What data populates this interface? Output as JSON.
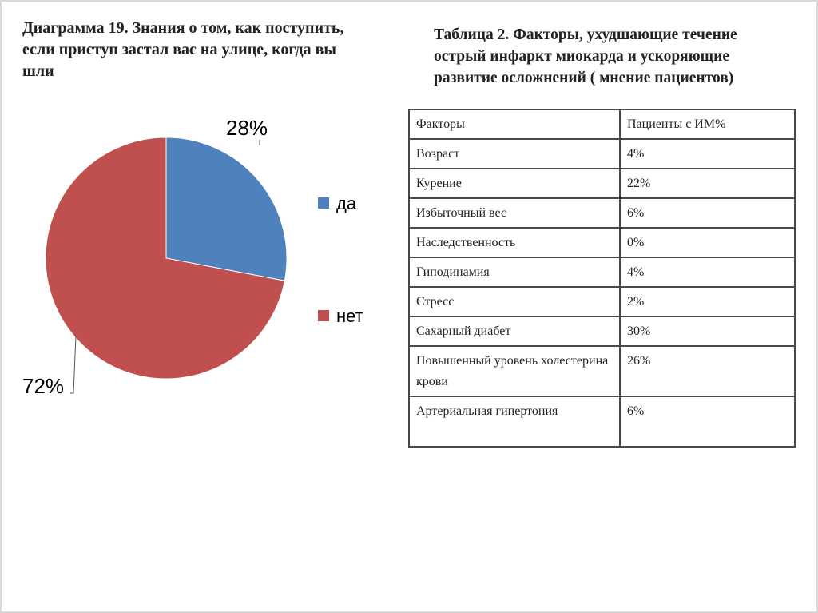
{
  "chart_title": "Диаграмма 19. Знания о том, как поступить,\nесли приступ застал вас на улице, когда вы\nшли",
  "table_title": "Таблица 2. Факторы, ухудшающие течение\nострый инфаркт миокарда и ускоряющие\nразвитие осложнений ( мнение пациентов)",
  "colors": {
    "да": "#4f81bd",
    "нет": "#c0504d"
  },
  "chart_data": {
    "type": "pie",
    "title": "Диаграмма 19. Знания о том, как поступить, если приступ застал вас на улице, когда вы шли",
    "categories": [
      "да",
      "нет"
    ],
    "values": [
      28,
      72
    ],
    "data_labels": [
      "28%",
      "72%"
    ],
    "legend_position": "right"
  },
  "table": {
    "headers": [
      "Факторы",
      "Пациенты с ИМ%"
    ],
    "rows": [
      [
        "Возраст",
        "4%"
      ],
      [
        "Курение",
        "22%"
      ],
      [
        "Избыточный вес",
        "6%"
      ],
      [
        "Наследственность",
        "0%"
      ],
      [
        "Гиподинамия",
        "4%"
      ],
      [
        "Стресс",
        "2%"
      ],
      [
        "Сахарный диабет",
        "30%"
      ],
      [
        "Повышенный уровень холестерина крови",
        "26%"
      ],
      [
        "Артериальная гипертония",
        "6%"
      ]
    ]
  }
}
